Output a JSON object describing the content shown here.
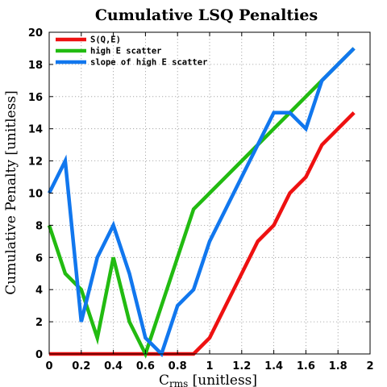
{
  "chart_data": {
    "type": "line",
    "title": "Cumulative LSQ Penalties",
    "xlabel": "C",
    "xlabel_sub": "rms",
    "xlabel_unit": " [unitless]",
    "ylabel": "Cumulative Penalty [unitless]",
    "xlim": [
      0,
      2
    ],
    "ylim": [
      0,
      20
    ],
    "x_ticks": [
      0,
      0.2,
      0.4,
      0.6,
      0.8,
      1,
      1.2,
      1.4,
      1.6,
      1.8,
      2
    ],
    "x_tick_labels": [
      "0",
      "0.2",
      "0.4",
      "0.6",
      "0.8",
      "1",
      "1.2",
      "1.4",
      "1.6",
      "1.8",
      "2"
    ],
    "y_ticks": [
      0,
      2,
      4,
      6,
      8,
      10,
      12,
      14,
      16,
      18,
      20
    ],
    "y_tick_labels": [
      "0",
      "2",
      "4",
      "6",
      "8",
      "10",
      "12",
      "14",
      "16",
      "18",
      "20"
    ],
    "grid": true,
    "legend_position": "top-left",
    "series": [
      {
        "name": "S(Q,E)",
        "color": "#ee1111",
        "x": [
          0,
          0.1,
          0.2,
          0.3,
          0.4,
          0.5,
          0.6,
          0.7,
          0.8,
          0.9,
          1.0,
          1.1,
          1.2,
          1.3,
          1.4,
          1.5,
          1.6,
          1.7,
          1.8,
          1.9
        ],
        "y": [
          0,
          0,
          0,
          0,
          0,
          0,
          0,
          0,
          0,
          0,
          1,
          3,
          5,
          7,
          8,
          10,
          11,
          13,
          14,
          15
        ]
      },
      {
        "name": "high E scatter",
        "color": "#22bb11",
        "x": [
          0,
          0.1,
          0.2,
          0.3,
          0.4,
          0.5,
          0.6,
          0.7,
          0.8,
          0.9,
          1.0,
          1.1,
          1.2,
          1.3,
          1.4,
          1.5,
          1.6,
          1.7,
          1.8,
          1.9
        ],
        "y": [
          8,
          5,
          4,
          1,
          6,
          2,
          0,
          3,
          6,
          9,
          10,
          11,
          12,
          13,
          14,
          15,
          16,
          17,
          18,
          19
        ]
      },
      {
        "name": "slope of high E scatter",
        "color": "#1177ee",
        "x": [
          0,
          0.1,
          0.2,
          0.3,
          0.4,
          0.5,
          0.6,
          0.7,
          0.8,
          0.9,
          1.0,
          1.1,
          1.2,
          1.3,
          1.4,
          1.5,
          1.6,
          1.7,
          1.8,
          1.9
        ],
        "y": [
          10,
          12,
          2,
          6,
          8,
          5,
          1,
          0,
          3,
          4,
          7,
          9,
          11,
          13,
          15,
          15,
          14,
          17,
          18,
          19
        ]
      }
    ]
  }
}
